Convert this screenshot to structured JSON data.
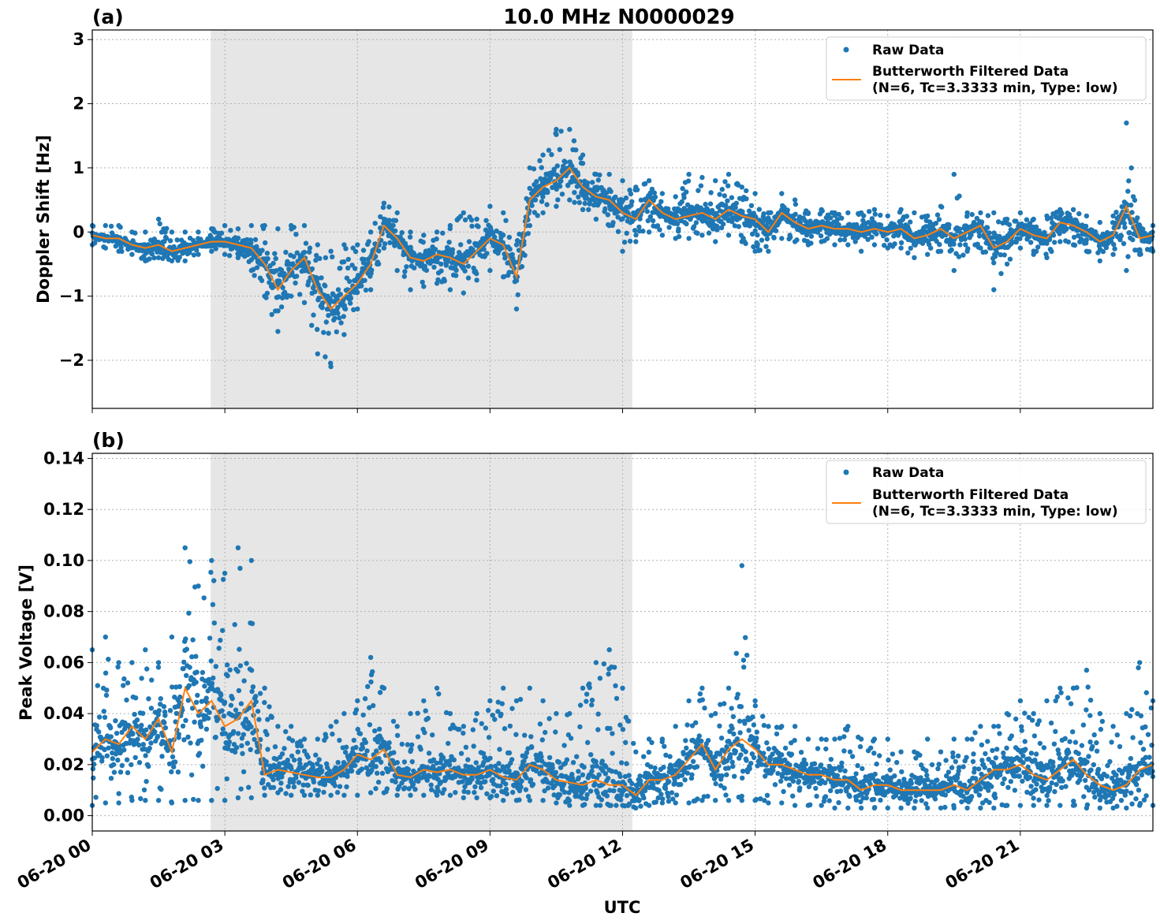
{
  "chart_data": [
    {
      "type": "scatter",
      "panel_label": "(a)",
      "title": "10.0 MHz N0000029",
      "ylabel": "Doppler Shift [Hz]",
      "xlabel": "",
      "x_unit": "hours UTC from 06-20 00",
      "xlim": [
        0,
        24
      ],
      "ylim": [
        -2.75,
        3.15
      ],
      "yticks": [
        {
          "value": -2,
          "label": "−2"
        },
        {
          "value": -1,
          "label": "−1"
        },
        {
          "value": 0,
          "label": "0"
        },
        {
          "value": 1,
          "label": "1"
        },
        {
          "value": 2,
          "label": "2"
        },
        {
          "value": 3,
          "label": "3"
        }
      ],
      "grid": true,
      "shaded_interval": [
        2.68,
        12.22
      ],
      "legend_position": "top-right",
      "legend": [
        {
          "name": "Raw Data",
          "style": "dot"
        },
        {
          "name": "Butterworth Filtered Data",
          "detail": "(N=6, Tc=3.3333 min, Type: low)",
          "style": "line"
        }
      ],
      "colors": {
        "raw": "#1f77b4",
        "filtered": "#ff7f0e",
        "shade": "#e6e6e6"
      },
      "series": [
        {
          "name": "Butterworth Filtered Data",
          "x": [
            0,
            0.3,
            0.6,
            0.9,
            1.2,
            1.5,
            1.8,
            2.1,
            2.4,
            2.7,
            3.0,
            3.3,
            3.6,
            3.9,
            4.2,
            4.5,
            4.8,
            5.1,
            5.4,
            5.7,
            6.0,
            6.3,
            6.6,
            6.9,
            7.2,
            7.5,
            7.8,
            8.1,
            8.4,
            8.7,
            9.0,
            9.3,
            9.6,
            9.9,
            10.2,
            10.5,
            10.8,
            11.1,
            11.4,
            11.7,
            12.0,
            12.3,
            12.6,
            12.9,
            13.2,
            13.5,
            13.8,
            14.1,
            14.4,
            14.7,
            15.0,
            15.3,
            15.6,
            15.9,
            16.2,
            16.5,
            16.8,
            17.1,
            17.4,
            17.7,
            18.0,
            18.3,
            18.6,
            18.9,
            19.2,
            19.5,
            19.8,
            20.1,
            20.4,
            20.7,
            21.0,
            21.3,
            21.6,
            21.9,
            22.2,
            22.5,
            22.8,
            23.1,
            23.4,
            23.7,
            24.0
          ],
          "y": [
            -0.05,
            -0.1,
            -0.1,
            -0.2,
            -0.25,
            -0.2,
            -0.3,
            -0.25,
            -0.2,
            -0.15,
            -0.15,
            -0.2,
            -0.25,
            -0.5,
            -0.9,
            -0.6,
            -0.4,
            -0.9,
            -1.2,
            -1.0,
            -0.8,
            -0.5,
            0.1,
            -0.1,
            -0.4,
            -0.45,
            -0.35,
            -0.4,
            -0.5,
            -0.3,
            -0.1,
            -0.2,
            -0.7,
            0.5,
            0.7,
            0.8,
            1.0,
            0.7,
            0.55,
            0.5,
            0.3,
            0.2,
            0.5,
            0.3,
            0.2,
            0.25,
            0.3,
            0.2,
            0.35,
            0.25,
            0.2,
            0.0,
            0.3,
            0.15,
            0.05,
            0.1,
            0.05,
            0.05,
            0.0,
            0.05,
            0.0,
            0.05,
            -0.1,
            -0.05,
            0.05,
            -0.1,
            0.0,
            0.1,
            -0.25,
            -0.15,
            0.05,
            -0.05,
            -0.1,
            0.15,
            0.1,
            0.0,
            -0.15,
            -0.05,
            0.4,
            -0.1,
            -0.05
          ]
        },
        {
          "name": "Raw Data",
          "x": [
            0,
            0.3,
            0.6,
            0.9,
            1.2,
            1.5,
            1.8,
            2.1,
            2.4,
            2.7,
            3.0,
            3.3,
            3.6,
            3.9,
            4.2,
            4.5,
            4.8,
            5.1,
            5.4,
            5.7,
            6.0,
            6.3,
            6.6,
            6.9,
            7.2,
            7.5,
            7.8,
            8.1,
            8.4,
            8.7,
            9.0,
            9.3,
            9.6,
            9.9,
            10.2,
            10.5,
            10.8,
            11.1,
            11.4,
            11.7,
            12.0,
            12.3,
            12.6,
            12.9,
            13.2,
            13.5,
            13.8,
            14.1,
            14.4,
            14.7,
            15.0,
            15.3,
            15.6,
            15.9,
            16.2,
            16.5,
            16.8,
            17.1,
            17.4,
            17.7,
            18.0,
            18.3,
            18.6,
            18.9,
            19.2,
            19.5,
            19.8,
            20.1,
            20.4,
            20.7,
            21.0,
            21.3,
            21.6,
            21.9,
            22.2,
            22.5,
            22.8,
            23.1,
            23.4,
            23.7,
            24.0
          ],
          "y_low": [
            -0.2,
            -0.25,
            -0.3,
            -0.35,
            -0.45,
            -0.4,
            -0.45,
            -0.45,
            -0.35,
            -0.3,
            -0.35,
            -0.4,
            -0.6,
            -1.0,
            -1.55,
            -1.0,
            -1.1,
            -1.9,
            -2.1,
            -1.6,
            -1.2,
            -0.9,
            -0.25,
            -0.6,
            -0.9,
            -0.85,
            -0.8,
            -0.9,
            -0.95,
            -0.75,
            -0.6,
            -0.7,
            -1.2,
            0.1,
            0.3,
            0.4,
            0.5,
            0.35,
            0.2,
            0.1,
            -0.3,
            -0.15,
            0.0,
            -0.05,
            -0.1,
            -0.1,
            -0.05,
            -0.15,
            -0.05,
            -0.15,
            -0.3,
            -0.3,
            -0.1,
            -0.15,
            -0.2,
            -0.15,
            -0.2,
            -0.2,
            -0.3,
            -0.2,
            -0.25,
            -0.25,
            -0.4,
            -0.35,
            -0.3,
            -0.6,
            -0.3,
            -0.25,
            -0.9,
            -0.5,
            -0.25,
            -0.35,
            -0.4,
            -0.15,
            -0.2,
            -0.3,
            -0.45,
            -0.35,
            -0.6,
            -0.35,
            -0.3
          ],
          "y_high": [
            0.1,
            0.1,
            0.1,
            0.0,
            0.0,
            0.2,
            0.0,
            0.0,
            0.0,
            0.05,
            0.1,
            0.05,
            0.1,
            0.1,
            0.05,
            0.1,
            0.1,
            -0.2,
            -0.3,
            -0.2,
            -0.2,
            0.0,
            0.45,
            0.3,
            0.0,
            -0.05,
            0.0,
            0.1,
            0.3,
            0.2,
            0.4,
            0.3,
            -0.2,
            1.0,
            1.2,
            1.6,
            1.6,
            1.2,
            0.9,
            0.9,
            0.8,
            0.7,
            0.8,
            0.6,
            0.55,
            0.9,
            0.85,
            0.8,
            0.9,
            0.7,
            0.6,
            0.3,
            0.6,
            0.5,
            0.3,
            0.35,
            0.3,
            0.3,
            0.3,
            0.35,
            0.25,
            0.35,
            0.3,
            0.25,
            0.4,
            0.9,
            0.3,
            0.3,
            0.3,
            0.2,
            0.3,
            0.2,
            0.25,
            0.35,
            0.35,
            0.25,
            0.15,
            0.25,
            1.7,
            0.1,
            0.1
          ]
        }
      ]
    },
    {
      "type": "scatter",
      "panel_label": "(b)",
      "title": "",
      "ylabel": "Peak Voltage [V]",
      "xlabel": "UTC",
      "x_unit": "hours UTC from 06-20 00",
      "xlim": [
        0,
        24
      ],
      "ylim": [
        -0.006,
        0.142
      ],
      "yticks": [
        {
          "value": 0.0,
          "label": "0.00"
        },
        {
          "value": 0.02,
          "label": "0.02"
        },
        {
          "value": 0.04,
          "label": "0.04"
        },
        {
          "value": 0.06,
          "label": "0.06"
        },
        {
          "value": 0.08,
          "label": "0.08"
        },
        {
          "value": 0.1,
          "label": "0.10"
        },
        {
          "value": 0.12,
          "label": "0.12"
        },
        {
          "value": 0.14,
          "label": "0.14"
        }
      ],
      "xticks": [
        {
          "value": 0,
          "label": "06-20 00"
        },
        {
          "value": 3,
          "label": "06-20 03"
        },
        {
          "value": 6,
          "label": "06-20 06"
        },
        {
          "value": 9,
          "label": "06-20 09"
        },
        {
          "value": 12,
          "label": "06-20 12"
        },
        {
          "value": 15,
          "label": "06-20 15"
        },
        {
          "value": 18,
          "label": "06-20 18"
        },
        {
          "value": 21,
          "label": "06-20 21"
        }
      ],
      "grid": true,
      "shaded_interval": [
        2.68,
        12.22
      ],
      "legend_position": "top-right",
      "legend": [
        {
          "name": "Raw Data",
          "style": "dot"
        },
        {
          "name": "Butterworth Filtered Data",
          "detail": "(N=6, Tc=3.3333 min, Type: low)",
          "style": "line"
        }
      ],
      "colors": {
        "raw": "#1f77b4",
        "filtered": "#ff7f0e",
        "shade": "#e6e6e6"
      },
      "series": [
        {
          "name": "Butterworth Filtered Data",
          "x": [
            0,
            0.3,
            0.6,
            0.9,
            1.2,
            1.5,
            1.8,
            2.1,
            2.4,
            2.7,
            3.0,
            3.3,
            3.6,
            3.9,
            4.2,
            4.5,
            4.8,
            5.1,
            5.4,
            5.7,
            6.0,
            6.3,
            6.6,
            6.9,
            7.2,
            7.5,
            7.8,
            8.1,
            8.4,
            8.7,
            9.0,
            9.3,
            9.6,
            9.9,
            10.2,
            10.5,
            10.8,
            11.1,
            11.4,
            11.7,
            12.0,
            12.3,
            12.6,
            12.9,
            13.2,
            13.5,
            13.8,
            14.1,
            14.4,
            14.7,
            15.0,
            15.3,
            15.6,
            15.9,
            16.2,
            16.5,
            16.8,
            17.1,
            17.4,
            17.7,
            18.0,
            18.3,
            18.6,
            18.9,
            19.2,
            19.5,
            19.8,
            20.1,
            20.4,
            20.7,
            21.0,
            21.3,
            21.6,
            21.9,
            22.2,
            22.5,
            22.8,
            23.1,
            23.4,
            23.7,
            24.0
          ],
          "y": [
            0.025,
            0.03,
            0.028,
            0.035,
            0.03,
            0.038,
            0.025,
            0.05,
            0.04,
            0.045,
            0.035,
            0.038,
            0.045,
            0.016,
            0.018,
            0.017,
            0.016,
            0.015,
            0.015,
            0.018,
            0.024,
            0.022,
            0.026,
            0.016,
            0.015,
            0.018,
            0.017,
            0.018,
            0.016,
            0.016,
            0.018,
            0.015,
            0.014,
            0.02,
            0.018,
            0.014,
            0.013,
            0.012,
            0.014,
            0.012,
            0.012,
            0.008,
            0.014,
            0.014,
            0.016,
            0.022,
            0.028,
            0.018,
            0.026,
            0.03,
            0.026,
            0.02,
            0.02,
            0.018,
            0.016,
            0.016,
            0.014,
            0.014,
            0.01,
            0.012,
            0.012,
            0.01,
            0.01,
            0.01,
            0.01,
            0.012,
            0.01,
            0.014,
            0.018,
            0.018,
            0.02,
            0.016,
            0.014,
            0.018,
            0.022,
            0.016,
            0.012,
            0.01,
            0.012,
            0.018,
            0.02
          ]
        },
        {
          "name": "Raw Data",
          "x": [
            0,
            0.3,
            0.6,
            0.9,
            1.2,
            1.5,
            1.8,
            2.1,
            2.4,
            2.7,
            3.0,
            3.3,
            3.6,
            3.9,
            4.2,
            4.5,
            4.8,
            5.1,
            5.4,
            5.7,
            6.0,
            6.3,
            6.6,
            6.9,
            7.2,
            7.5,
            7.8,
            8.1,
            8.4,
            8.7,
            9.0,
            9.3,
            9.6,
            9.9,
            10.2,
            10.5,
            10.8,
            11.1,
            11.4,
            11.7,
            12.0,
            12.3,
            12.6,
            12.9,
            13.2,
            13.5,
            13.8,
            14.1,
            14.4,
            14.7,
            15.0,
            15.3,
            15.6,
            15.9,
            16.2,
            16.5,
            16.8,
            17.1,
            17.4,
            17.7,
            18.0,
            18.3,
            18.6,
            18.9,
            19.2,
            19.5,
            19.8,
            20.1,
            20.4,
            20.7,
            21.0,
            21.3,
            21.6,
            21.9,
            22.2,
            22.5,
            22.8,
            23.1,
            23.4,
            23.7,
            24.0
          ],
          "y_low": [
            0.004,
            0.005,
            0.005,
            0.006,
            0.006,
            0.006,
            0.005,
            0.006,
            0.006,
            0.006,
            0.006,
            0.007,
            0.007,
            0.008,
            0.009,
            0.008,
            0.008,
            0.008,
            0.008,
            0.008,
            0.008,
            0.009,
            0.009,
            0.008,
            0.008,
            0.008,
            0.008,
            0.008,
            0.007,
            0.007,
            0.007,
            0.006,
            0.006,
            0.006,
            0.006,
            0.005,
            0.004,
            0.004,
            0.004,
            0.004,
            0.004,
            0.003,
            0.004,
            0.005,
            0.005,
            0.005,
            0.006,
            0.006,
            0.006,
            0.006,
            0.006,
            0.005,
            0.005,
            0.004,
            0.004,
            0.004,
            0.003,
            0.003,
            0.003,
            0.003,
            0.003,
            0.003,
            0.003,
            0.003,
            0.003,
            0.003,
            0.003,
            0.003,
            0.003,
            0.004,
            0.004,
            0.004,
            0.004,
            0.004,
            0.004,
            0.003,
            0.003,
            0.003,
            0.003,
            0.004,
            0.004
          ],
          "y_high": [
            0.065,
            0.07,
            0.06,
            0.06,
            0.065,
            0.06,
            0.07,
            0.105,
            0.09,
            0.1,
            0.095,
            0.105,
            0.1,
            0.05,
            0.035,
            0.035,
            0.03,
            0.03,
            0.035,
            0.04,
            0.045,
            0.062,
            0.05,
            0.035,
            0.04,
            0.045,
            0.05,
            0.04,
            0.035,
            0.04,
            0.045,
            0.05,
            0.045,
            0.05,
            0.045,
            0.04,
            0.04,
            0.05,
            0.06,
            0.065,
            0.05,
            0.025,
            0.03,
            0.03,
            0.035,
            0.045,
            0.05,
            0.04,
            0.05,
            0.098,
            0.045,
            0.035,
            0.035,
            0.035,
            0.03,
            0.03,
            0.03,
            0.035,
            0.03,
            0.03,
            0.03,
            0.025,
            0.025,
            0.03,
            0.025,
            0.03,
            0.03,
            0.035,
            0.035,
            0.04,
            0.045,
            0.04,
            0.045,
            0.05,
            0.05,
            0.057,
            0.04,
            0.035,
            0.04,
            0.06,
            0.045
          ]
        }
      ]
    }
  ]
}
